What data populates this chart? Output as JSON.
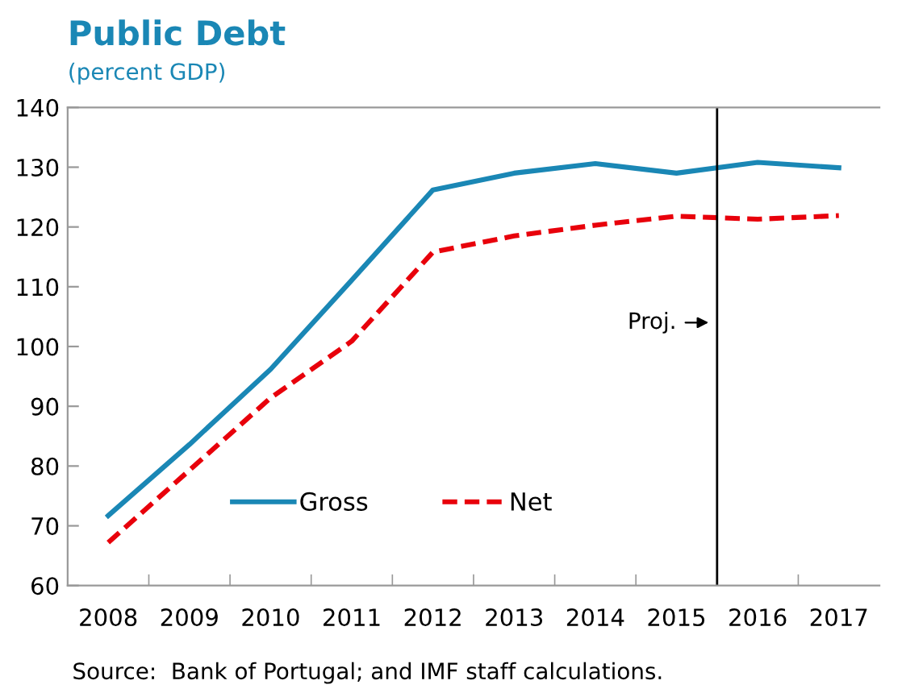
{
  "chart_data": {
    "type": "line",
    "title": "Public Debt",
    "subtitle": "(percent GDP)",
    "x": [
      2008,
      2009,
      2010,
      2011,
      2012,
      2013,
      2014,
      2015,
      2016,
      2017
    ],
    "series": [
      {
        "name": "Gross",
        "color": "#1a87b5",
        "line_style": "solid",
        "values": [
          71.7,
          83.6,
          96.2,
          111.1,
          126.2,
          129.0,
          130.6,
          129.0,
          130.8,
          129.9
        ]
      },
      {
        "name": "Net",
        "color": "#e8000b",
        "line_style": "dashed",
        "values": [
          67.2,
          79.3,
          91.4,
          100.9,
          115.8,
          118.5,
          120.3,
          121.8,
          121.3,
          121.9
        ]
      }
    ],
    "xlim": [
      2007.5,
      2017.5
    ],
    "xticks": [
      2008,
      2009,
      2010,
      2011,
      2012,
      2013,
      2014,
      2015,
      2016,
      2017,
      {
        "value": 2008.5,
        "label": null
      },
      {
        "value": 2009.5,
        "label": null
      },
      {
        "value": 2010.5,
        "label": null
      },
      {
        "value": 2011.5,
        "label": null
      },
      {
        "value": 2012.5,
        "label": null
      },
      {
        "value": 2013.5,
        "label": null
      },
      {
        "value": 2014.5,
        "label": null
      },
      {
        "value": 2015.5,
        "label": null
      },
      {
        "value": 2016.5,
        "label": null
      }
    ],
    "ylim": [
      60,
      140
    ],
    "yticks": [
      60,
      70,
      80,
      90,
      100,
      110,
      120,
      130,
      140
    ],
    "ref_lines": [
      {
        "axis": "x",
        "value": 2015.5,
        "label": "Proj.",
        "color": "#000000"
      }
    ],
    "legend": "bottom",
    "grid": false,
    "marker": "none",
    "annotations": [
      "Source:  Bank of Portugal; and IMF staff calculations."
    ]
  }
}
